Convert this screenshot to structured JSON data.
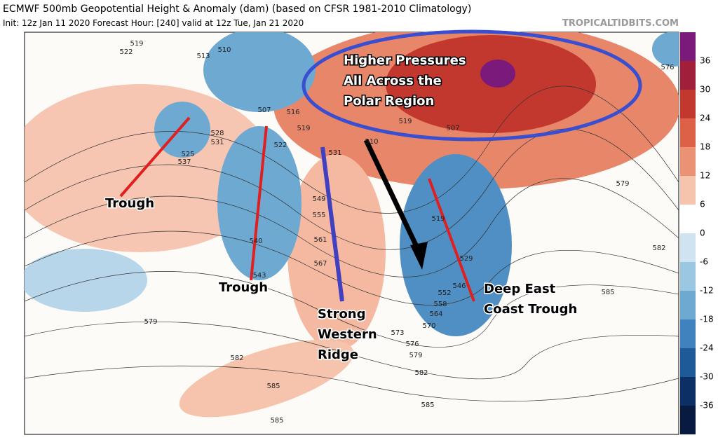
{
  "header": {
    "title": "ECMWF 500mb Geopotential Height & Anomaly (dam) (based on CFSR 1981-2010 Climatology)",
    "subtitle": "Init: 12z Jan 11 2020   Forecast Hour: [240]   valid at 12z Tue, Jan 21 2020",
    "watermark": "TROPICALTIDBITS.COM"
  },
  "colorbar": {
    "ticks": [
      "36",
      "30",
      "24",
      "18",
      "12",
      "6",
      "0",
      "-6",
      "-12",
      "-18",
      "-24",
      "-30",
      "-36"
    ]
  },
  "annotations": [
    {
      "lines": [
        "Higher Pressures",
        "All Across the",
        "Polar Region"
      ]
    },
    {
      "lines": [
        "Trough"
      ]
    },
    {
      "lines": [
        "Trough"
      ]
    },
    {
      "lines": [
        "Strong",
        "Western",
        "Ridge"
      ]
    },
    {
      "lines": [
        "Deep East",
        "Coast Trough"
      ]
    }
  ],
  "contour_labels": [
    "519",
    "522",
    "513",
    "510",
    "507",
    "516",
    "519",
    "528",
    "531",
    "525",
    "537",
    "522",
    "531",
    "549",
    "555",
    "561",
    "567",
    "507",
    "519",
    "510",
    "519",
    "529",
    "552",
    "558",
    "564",
    "570",
    "573",
    "576",
    "579",
    "582",
    "585",
    "579",
    "582",
    "585",
    "585",
    "579",
    "582",
    "585",
    "576",
    "540",
    "543",
    "546"
  ]
}
